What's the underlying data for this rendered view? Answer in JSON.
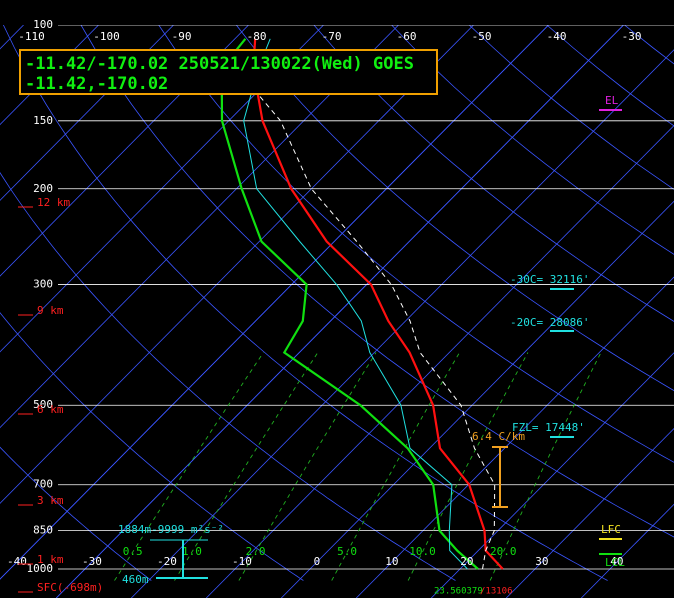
{
  "chart_data": {
    "type": "skewt",
    "header": [
      "-11.42/-170.02 250521/130022(Wed) GOES",
      "-11.42,-170.02"
    ],
    "x": [
      1000,
      925,
      850,
      700,
      600,
      500,
      400,
      350,
      300,
      250,
      200,
      150,
      120,
      106
    ],
    "log_scale": true,
    "ylim": [
      1000,
      100
    ],
    "yticks": [
      100,
      150,
      200,
      300,
      500,
      700,
      850,
      1000
    ],
    "xticks_top": [
      -110,
      -100,
      -90,
      -80,
      -70,
      -60,
      -50,
      -40,
      -30
    ],
    "xticks_bottom": [
      -40,
      -30,
      -20,
      -10,
      0,
      10,
      20,
      30,
      40
    ],
    "series": [
      {
        "color": "#ff1010",
        "values": [
          25.7,
          21,
          18.2,
          10.1,
          1.4,
          -5.2,
          -15.3,
          -22.3,
          -29.4,
          -41,
          -52.7,
          -65.5,
          -73.7,
          -77.3
        ]
      },
      {
        "color": "#10e010",
        "values": [
          22.4,
          17.2,
          12.2,
          5.3,
          -2.9,
          -14.9,
          -32,
          -33.7,
          -38,
          -49.7,
          -59.3,
          -70.9,
          -77.9,
          -78.6
        ]
      },
      {
        "color": "#20e0e0",
        "values": [
          21,
          16.2,
          13.5,
          7.8,
          -2.6,
          -9.5,
          -20.6,
          -25.9,
          -34,
          -44.6,
          -57.3,
          -68,
          -73,
          -75.3
        ]
      },
      {
        "color": "#ffffff",
        "dashed": true,
        "values": [
          23,
          21,
          19.5,
          13.5,
          6,
          -1.5,
          -13.9,
          -19.4,
          -26.7,
          -37,
          -50,
          -63.1,
          -76,
          null
        ]
      }
    ],
    "height_labels": [
      "12 km",
      "9 km",
      "6 km",
      "3 km",
      "1 km",
      "SFC(-698m)"
    ],
    "mixing_ratios": [
      0.5,
      {
        "value": 1,
        "label": "1.0"
      },
      {
        "value": 2,
        "label": "2.0"
      },
      {
        "value": 5,
        "label": "5.0"
      },
      {
        "value": 10,
        "label": "10.0"
      },
      {
        "value": 20,
        "label": "20.0"
      }
    ],
    "annotations": {
      "helicity": "1884m-9999 m²s⁻²",
      "helicity_base": "460m",
      "t_minus30": "-30C= 32116'",
      "t_minus20": "-20C= 28086'",
      "fzl": "FZL= 17448'",
      "lapse_rate": "6.4 C/km",
      "el": "EL",
      "lfc": "LFC",
      "lcl": "LCL",
      "sfc_values": "23.560379",
      "sfc_height": "/13106"
    }
  }
}
